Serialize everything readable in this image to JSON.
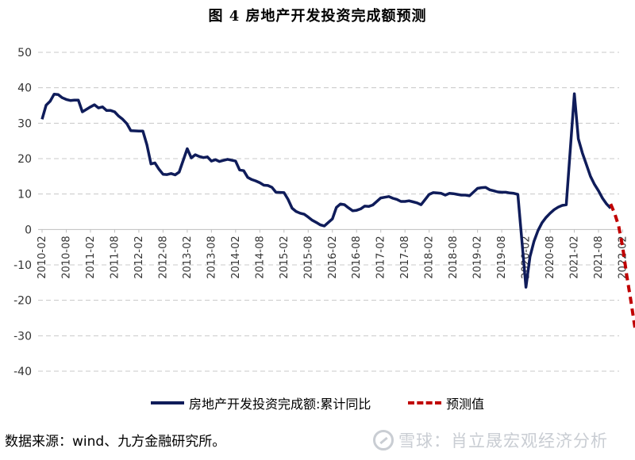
{
  "figure": {
    "title": "图 4    房地产开发投资完成额预测",
    "source": "数据来源：wind、九方金融研究所。",
    "watermark": "雪球：肖立晟宏观经济分析"
  },
  "colors": {
    "actual_series": "#0f1c5a",
    "forecast_series": "#c00000",
    "gridline": "#c8c8c8",
    "watermark": "#c9cdd3"
  },
  "chart_data": {
    "type": "line",
    "title": "图 4    房地产开发投资完成额预测",
    "xlabel": "",
    "ylabel": "",
    "ylim": [
      -40,
      50
    ],
    "yticks": [
      50,
      40,
      30,
      20,
      10,
      0,
      -10,
      -20,
      -30,
      -40
    ],
    "grid": true,
    "legend_position": "bottom",
    "x_tick_labels": [
      "2010-02",
      "2010-08",
      "2011-02",
      "2011-08",
      "2012-02",
      "2012-08",
      "2013-02",
      "2013-08",
      "2014-02",
      "2014-08",
      "2015-02",
      "2015-08",
      "2016-02",
      "2016-08",
      "2017-02",
      "2017-08",
      "2018-02",
      "2018-08",
      "2019-02",
      "2019-08",
      "2020-02",
      "2020-08",
      "2021-02",
      "2021-08",
      "2022-02"
    ],
    "series": [
      {
        "name": "房地产开发投资完成额:累计同比",
        "style": "solid",
        "x": [
          "2010-02",
          "2010-03",
          "2010-04",
          "2010-05",
          "2010-06",
          "2010-07",
          "2010-08",
          "2010-09",
          "2010-10",
          "2010-11",
          "2010-12",
          "2011-02",
          "2011-03",
          "2011-04",
          "2011-05",
          "2011-06",
          "2011-07",
          "2011-08",
          "2011-09",
          "2011-10",
          "2011-11",
          "2011-12",
          "2012-02",
          "2012-03",
          "2012-04",
          "2012-05",
          "2012-06",
          "2012-07",
          "2012-08",
          "2012-09",
          "2012-10",
          "2012-11",
          "2012-12",
          "2013-02",
          "2013-03",
          "2013-04",
          "2013-05",
          "2013-06",
          "2013-07",
          "2013-08",
          "2013-09",
          "2013-10",
          "2013-11",
          "2013-12",
          "2014-02",
          "2014-03",
          "2014-04",
          "2014-05",
          "2014-06",
          "2014-07",
          "2014-08",
          "2014-09",
          "2014-10",
          "2014-11",
          "2014-12",
          "2015-02",
          "2015-03",
          "2015-04",
          "2015-05",
          "2015-06",
          "2015-07",
          "2015-08",
          "2015-09",
          "2015-10",
          "2015-11",
          "2015-12",
          "2016-02",
          "2016-03",
          "2016-04",
          "2016-05",
          "2016-06",
          "2016-07",
          "2016-08",
          "2016-09",
          "2016-10",
          "2016-11",
          "2016-12",
          "2017-02",
          "2017-03",
          "2017-04",
          "2017-05",
          "2017-06",
          "2017-07",
          "2017-08",
          "2017-09",
          "2017-10",
          "2017-11",
          "2017-12",
          "2018-02",
          "2018-03",
          "2018-04",
          "2018-05",
          "2018-06",
          "2018-07",
          "2018-08",
          "2018-09",
          "2018-10",
          "2018-11",
          "2018-12",
          "2019-02",
          "2019-03",
          "2019-04",
          "2019-05",
          "2019-06",
          "2019-07",
          "2019-08",
          "2019-09",
          "2019-10",
          "2019-11",
          "2019-12",
          "2020-02",
          "2020-03",
          "2020-04",
          "2020-05",
          "2020-06",
          "2020-07",
          "2020-08",
          "2020-09",
          "2020-10",
          "2020-11",
          "2020-12",
          "2021-02",
          "2021-03",
          "2021-04",
          "2021-05",
          "2021-06",
          "2021-07",
          "2021-08",
          "2021-09",
          "2021-10",
          "2021-11"
        ],
        "y": [
          31.1,
          35.1,
          36.2,
          38.2,
          38.1,
          37.2,
          36.7,
          36.4,
          36.5,
          36.5,
          33.2,
          34.6,
          35.2,
          34.3,
          34.6,
          33.6,
          33.6,
          33.2,
          32.0,
          31.1,
          29.9,
          27.9,
          27.8,
          27.8,
          23.9,
          18.5,
          18.8,
          17.0,
          15.6,
          15.5,
          15.8,
          15.4,
          16.2,
          22.8,
          20.2,
          21.1,
          20.6,
          20.3,
          20.5,
          19.3,
          19.7,
          19.2,
          19.5,
          19.8,
          19.3,
          16.8,
          16.6,
          14.7,
          14.1,
          13.7,
          13.2,
          12.5,
          12.4,
          11.9,
          10.5,
          10.4,
          8.5,
          6.0,
          5.1,
          4.6,
          4.3,
          3.5,
          2.6,
          2.0,
          1.3,
          1.0,
          3.0,
          6.2,
          7.2,
          7.0,
          6.1,
          5.3,
          5.4,
          5.8,
          6.6,
          6.5,
          6.9,
          8.9,
          9.1,
          9.3,
          8.8,
          8.5,
          7.9,
          7.9,
          8.1,
          7.8,
          7.5,
          7.0,
          9.9,
          10.4,
          10.3,
          10.2,
          9.7,
          10.2,
          10.1,
          9.9,
          9.7,
          9.7,
          9.5,
          11.6,
          11.8,
          11.9,
          11.2,
          10.9,
          10.6,
          10.5,
          10.5,
          10.3,
          10.2,
          9.9,
          -16.3,
          -7.7,
          -3.3,
          -0.3,
          1.9,
          3.4,
          4.6,
          5.6,
          6.3,
          6.8,
          7.0,
          38.3,
          25.6,
          21.6,
          18.3,
          15.0,
          12.7,
          10.9,
          8.8,
          7.2,
          6.0
        ],
        "color": "#0f1c5a"
      },
      {
        "name": "预测值",
        "style": "dashed",
        "x": [
          "2021-11",
          "2021-12",
          "2022-01",
          "2022-02",
          "2022-03",
          "2022-04",
          "2022-05",
          "2022-06"
        ],
        "y": [
          7.2,
          4.5,
          1.0,
          -5.0,
          -13.0,
          -20.0,
          -27.5,
          -30.0
        ],
        "color": "#c00000"
      }
    ]
  }
}
